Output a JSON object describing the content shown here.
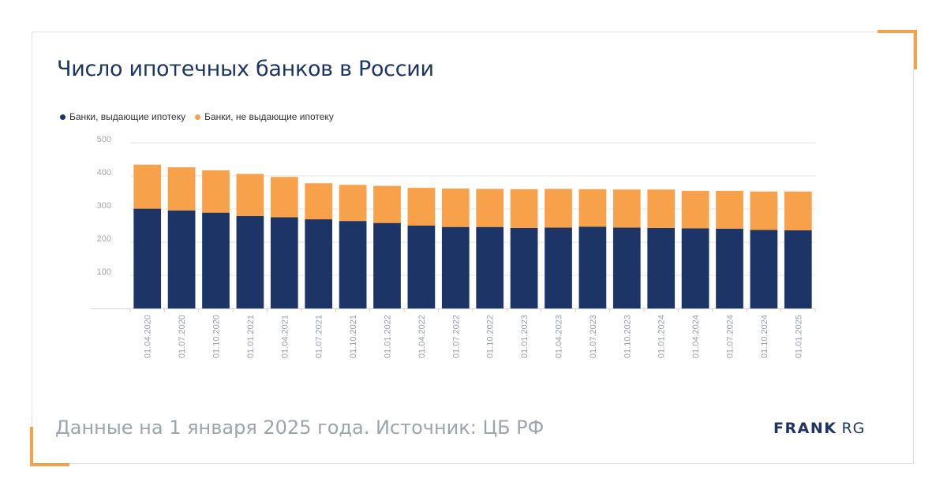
{
  "title": "Число ипотечных банков в России",
  "footer": "Данные на 1 января 2025 года. Источник: ЦБ РФ",
  "logo": {
    "primary": "FRANK",
    "secondary": "RG"
  },
  "colors": {
    "accent": "#f7a24b",
    "navy": "#1c3566",
    "orange": "#f7a24b"
  },
  "chart_data": {
    "type": "bar",
    "stacked": true,
    "categories": [
      "01.04.2020",
      "01.07.2020",
      "01.10.2020",
      "01.01.2021",
      "01.04.2021",
      "01.07.2021",
      "01.10.2021",
      "01.01.2022",
      "01.04.2022",
      "01.07.2022",
      "01.10.2022",
      "01.01.2023",
      "01.04.2023",
      "01.07.2023",
      "01.10.2023",
      "01.01.2024",
      "01.04.2024",
      "01.07.2024",
      "01.10.2024",
      "01.01.2025"
    ],
    "series": [
      {
        "name": "Банки, выдающие ипотеку",
        "color": "#1c3566",
        "values": [
          301,
          296,
          289,
          279,
          275,
          269,
          264,
          258,
          250,
          246,
          246,
          243,
          244,
          247,
          244,
          243,
          242,
          241,
          237,
          236
        ]
      },
      {
        "name": "Банки, не выдающие ипотеку",
        "color": "#f7a24b",
        "values": [
          133,
          130,
          128,
          127,
          122,
          109,
          109,
          112,
          114,
          116,
          115,
          117,
          117,
          113,
          115,
          116,
          113,
          114,
          116,
          117
        ]
      }
    ],
    "yticks": [
      100,
      200,
      300,
      400,
      500
    ],
    "ylim": [
      0,
      500
    ],
    "grid": true,
    "legend_position": "top-left"
  }
}
